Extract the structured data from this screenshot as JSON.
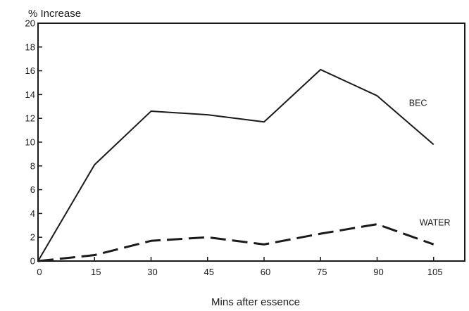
{
  "chart_data": {
    "type": "line",
    "title": "",
    "ylabel": "% Increase",
    "xlabel": "Mins after essence",
    "x": [
      0,
      15,
      30,
      45,
      60,
      75,
      90,
      105
    ],
    "xticks": [
      "0",
      "15",
      "30",
      "45",
      "60",
      "75",
      "90",
      "105"
    ],
    "yticks": [
      "0",
      "2",
      "4",
      "6",
      "8",
      "10",
      "12",
      "14",
      "16",
      "18",
      "20"
    ],
    "xlim": [
      0,
      111
    ],
    "ylim": [
      0,
      20
    ],
    "grid": false,
    "legend": "none",
    "series": [
      {
        "name": "BEC",
        "values": [
          0,
          8.1,
          12.6,
          12.3,
          11.7,
          16.1,
          13.9,
          9.8
        ],
        "style": "solid",
        "color": "#1a1a1a"
      },
      {
        "name": "WATER",
        "values": [
          0,
          0.5,
          1.7,
          2.0,
          1.4,
          2.3,
          3.1,
          1.4
        ],
        "style": "dashed",
        "color": "#1a1a1a"
      }
    ]
  }
}
